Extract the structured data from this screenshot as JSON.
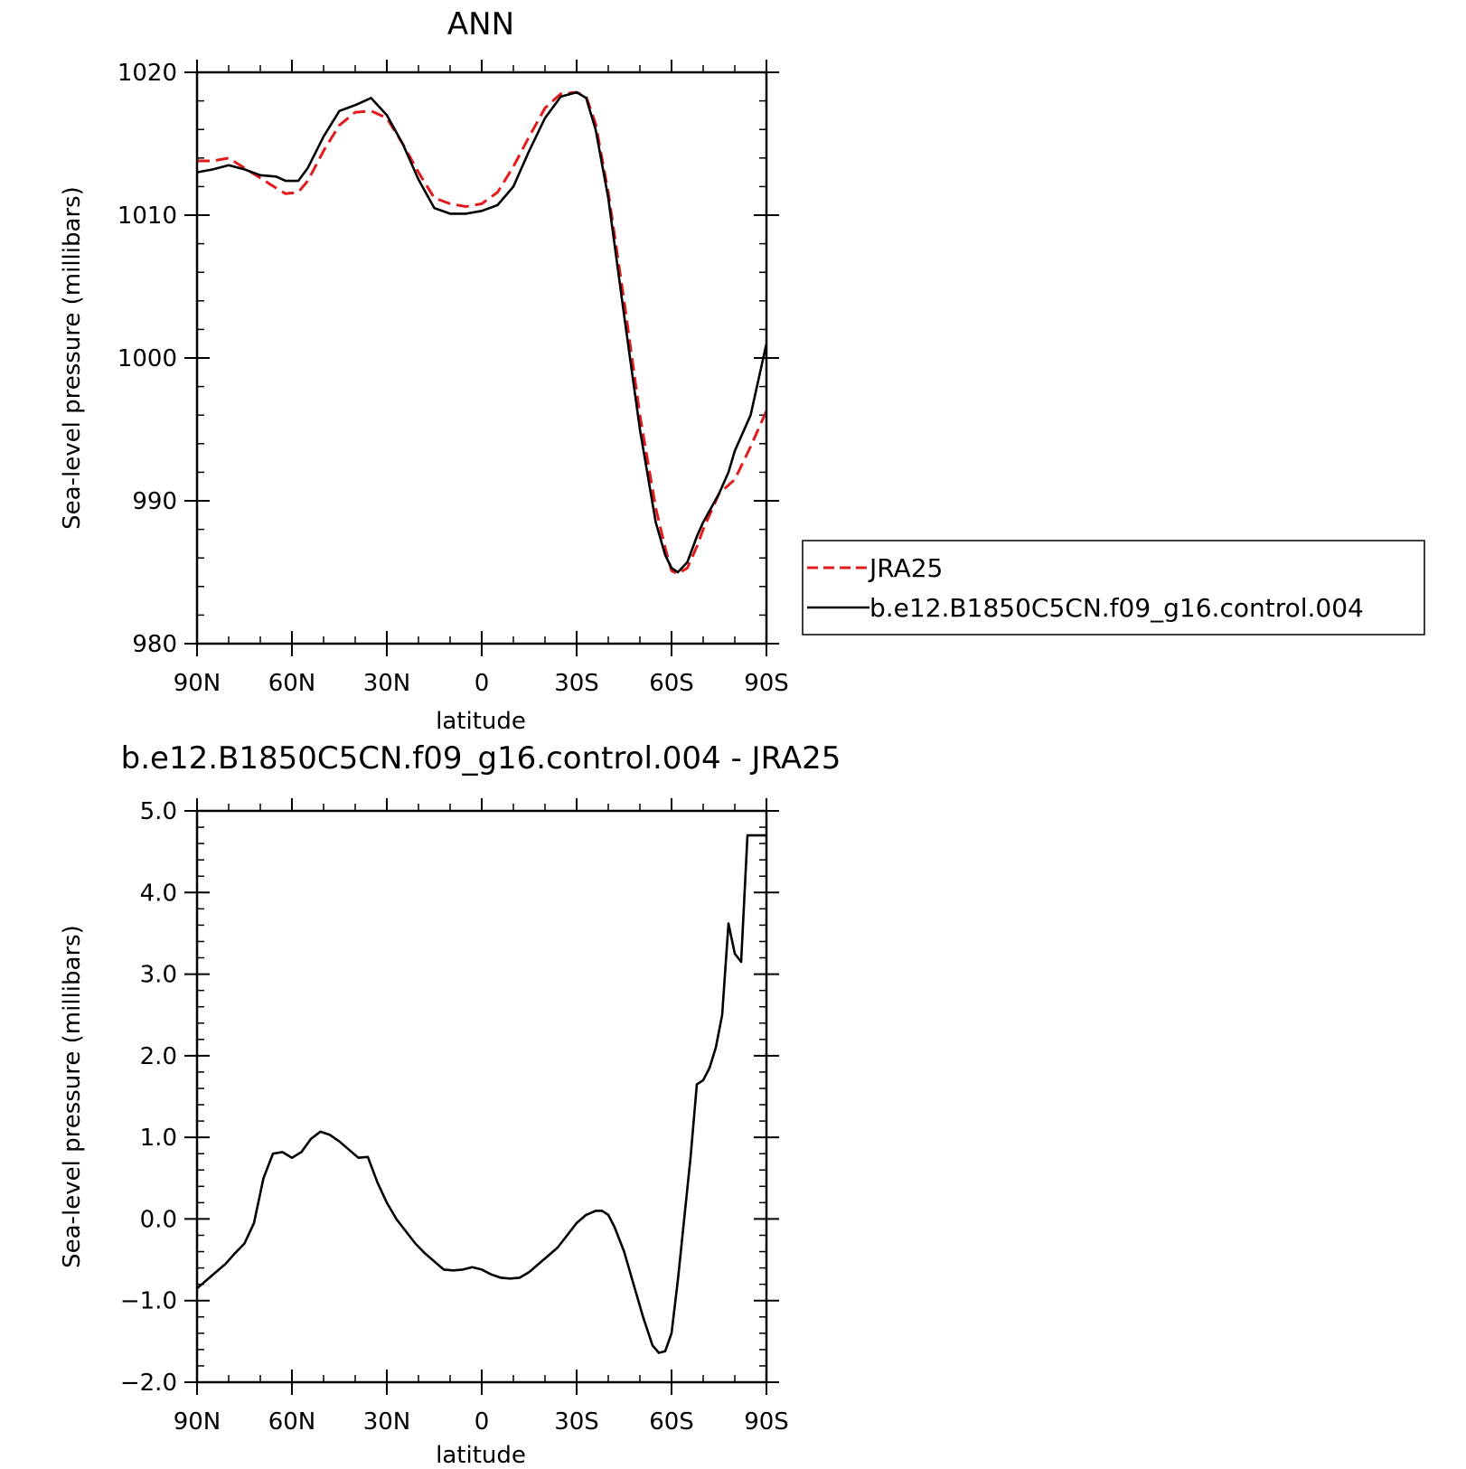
{
  "chart_data": [
    {
      "type": "line",
      "title": "ANN",
      "xlabel": "latitude",
      "ylabel": "Sea-level pressure (millibars)",
      "xlim": [
        90,
        -90
      ],
      "ylim": [
        980,
        1020
      ],
      "x_ticks": [
        {
          "value": 90,
          "label": "90N"
        },
        {
          "value": 60,
          "label": "60N"
        },
        {
          "value": 30,
          "label": "30N"
        },
        {
          "value": 0,
          "label": "0"
        },
        {
          "value": -30,
          "label": "30S"
        },
        {
          "value": -60,
          "label": "60S"
        },
        {
          "value": -90,
          "label": "90S"
        }
      ],
      "y_ticks": [
        {
          "value": 980,
          "label": "980"
        },
        {
          "value": 990,
          "label": "990"
        },
        {
          "value": 1000,
          "label": "1000"
        },
        {
          "value": 1010,
          "label": "1010"
        },
        {
          "value": 1020,
          "label": "1020"
        }
      ],
      "legend": {
        "placement": "right",
        "entries": [
          {
            "name": "JRA25",
            "color": "#e31a1c",
            "dash": true
          },
          {
            "name": "b.e12.B1850C5CN.f09_g16.control.004",
            "color": "#000000",
            "dash": false
          }
        ]
      },
      "series": [
        {
          "name": "JRA25",
          "color": "#e31a1c",
          "dash": true,
          "x": [
            90,
            85,
            80,
            75,
            70,
            65,
            62,
            58,
            55,
            50,
            45,
            40,
            35,
            30,
            25,
            20,
            15,
            10,
            5,
            0,
            -5,
            -10,
            -15,
            -20,
            -25,
            -30,
            -33,
            -36,
            -40,
            -45,
            -50,
            -55,
            -58,
            -60,
            -62,
            -65,
            -68,
            -70,
            -75,
            -80,
            -85,
            -90
          ],
          "y": [
            1013.8,
            1013.8,
            1014.0,
            1013.3,
            1012.6,
            1011.9,
            1011.5,
            1011.6,
            1012.4,
            1014.5,
            1016.3,
            1017.2,
            1017.3,
            1016.8,
            1015.0,
            1013.0,
            1011.2,
            1010.8,
            1010.6,
            1010.8,
            1011.6,
            1013.4,
            1015.5,
            1017.5,
            1018.5,
            1018.6,
            1018.3,
            1016.4,
            1011.6,
            1004.0,
            996.0,
            989.5,
            986.7,
            985.1,
            984.9,
            985.3,
            986.8,
            988.0,
            990.5,
            991.5,
            993.8,
            996.3
          ]
        },
        {
          "name": "b.e12.B1850C5CN.f09_g16.control.004",
          "color": "#000000",
          "dash": false,
          "x": [
            90,
            85,
            80,
            75,
            70,
            65,
            62,
            58,
            55,
            50,
            45,
            40,
            35,
            30,
            25,
            20,
            15,
            10,
            5,
            0,
            -5,
            -10,
            -15,
            -20,
            -25,
            -30,
            -33,
            -36,
            -40,
            -45,
            -50,
            -55,
            -58,
            -60,
            -62,
            -65,
            -68,
            -70,
            -75,
            -78,
            -80,
            -85,
            -90
          ],
          "y": [
            1013.0,
            1013.2,
            1013.5,
            1013.2,
            1012.8,
            1012.7,
            1012.4,
            1012.4,
            1013.3,
            1015.5,
            1017.3,
            1017.7,
            1018.2,
            1017.0,
            1015.0,
            1012.5,
            1010.5,
            1010.1,
            1010.1,
            1010.3,
            1010.7,
            1012.0,
            1014.5,
            1016.8,
            1018.3,
            1018.6,
            1018.2,
            1016.0,
            1011.2,
            1003.0,
            995.0,
            988.5,
            986.2,
            985.3,
            985.0,
            985.7,
            987.5,
            988.5,
            990.5,
            992.0,
            993.5,
            996.0,
            1001.0
          ]
        }
      ]
    },
    {
      "type": "line",
      "title": "b.e12.B1850C5CN.f09_g16.control.004 - JRA25",
      "xlabel": "latitude",
      "ylabel": "Sea-level pressure (millibars)",
      "xlim": [
        90,
        -90
      ],
      "ylim": [
        -2.0,
        5.0
      ],
      "x_ticks": [
        {
          "value": 90,
          "label": "90N"
        },
        {
          "value": 60,
          "label": "60N"
        },
        {
          "value": 30,
          "label": "30N"
        },
        {
          "value": 0,
          "label": "0"
        },
        {
          "value": -30,
          "label": "30S"
        },
        {
          "value": -60,
          "label": "60S"
        },
        {
          "value": -90,
          "label": "90S"
        }
      ],
      "y_ticks": [
        {
          "value": -2.0,
          "label": "−2.0"
        },
        {
          "value": -1.0,
          "label": "−1.0"
        },
        {
          "value": 0.0,
          "label": "0.0"
        },
        {
          "value": 1.0,
          "label": "1.0"
        },
        {
          "value": 2.0,
          "label": "2.0"
        },
        {
          "value": 3.0,
          "label": "3.0"
        },
        {
          "value": 4.0,
          "label": "4.0"
        },
        {
          "value": 5.0,
          "label": "5.0"
        }
      ],
      "series": [
        {
          "name": "b.e12.B1850C5CN.f09_g16.control.004 - JRA25",
          "color": "#000000",
          "dash": false,
          "x": [
            90,
            87,
            84,
            81,
            78,
            75,
            72,
            69,
            66,
            63,
            60,
            57,
            54,
            51,
            48,
            45,
            42,
            39,
            36,
            33,
            30,
            27,
            24,
            21,
            18,
            15,
            12,
            9,
            6,
            3,
            0,
            -3,
            -6,
            -9,
            -12,
            -15,
            -18,
            -21,
            -24,
            -27,
            -30,
            -33,
            -36,
            -38,
            -40,
            -42,
            -45,
            -48,
            -51,
            -54,
            -56,
            -58,
            -60,
            -62,
            -64,
            -66,
            -68,
            -70,
            -72,
            -74,
            -76,
            -78,
            -80,
            -82,
            -84,
            -87,
            -90
          ],
          "y": [
            -0.85,
            -0.75,
            -0.65,
            -0.55,
            -0.42,
            -0.3,
            -0.05,
            0.5,
            0.8,
            0.82,
            0.75,
            0.82,
            0.98,
            1.07,
            1.03,
            0.95,
            0.85,
            0.75,
            0.76,
            0.45,
            0.2,
            0.0,
            -0.15,
            -0.3,
            -0.42,
            -0.52,
            -0.62,
            -0.63,
            -0.62,
            -0.59,
            -0.62,
            -0.68,
            -0.72,
            -0.73,
            -0.72,
            -0.65,
            -0.55,
            -0.45,
            -0.35,
            -0.2,
            -0.05,
            0.05,
            0.1,
            0.1,
            0.05,
            -0.1,
            -0.4,
            -0.8,
            -1.2,
            -1.55,
            -1.64,
            -1.62,
            -1.4,
            -0.75,
            0.0,
            0.75,
            1.65,
            1.7,
            1.85,
            2.1,
            2.5,
            3.62,
            3.25,
            3.15,
            4.7,
            4.7,
            4.7
          ]
        }
      ]
    }
  ]
}
